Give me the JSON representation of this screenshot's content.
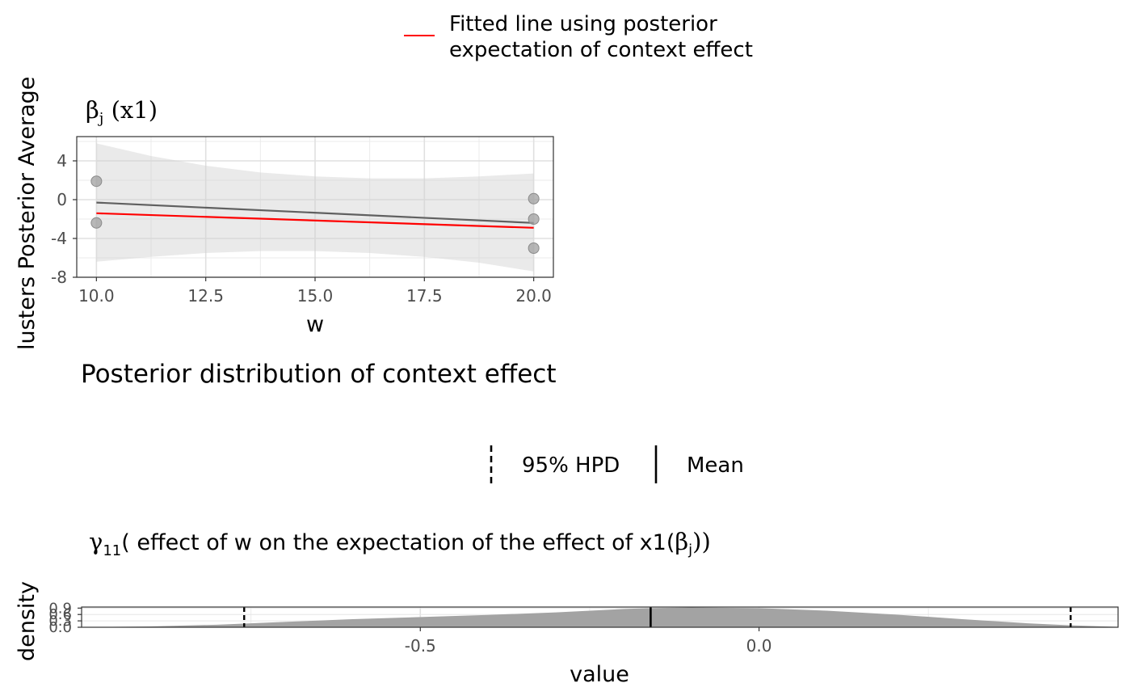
{
  "top_legend": {
    "line_color": "#ff0000",
    "label_line1": "Fitted line using posterior",
    "label_line2": "expectation of context effect"
  },
  "ylabel_outer": "lusters Posterior Average",
  "panel1": {
    "title_symbol": "β",
    "title_subscript": "j",
    "title_rest": " (x1)",
    "xlabel": "w",
    "xticks": [
      "10.0",
      "12.5",
      "15.0",
      "17.5",
      "20.0"
    ],
    "yticks": [
      "4",
      "0",
      "-4",
      "-8"
    ]
  },
  "section_title": "Posterior distribution of context effect",
  "mid_legend": {
    "hpd_label": "95% HPD",
    "mean_label": "Mean"
  },
  "panel2": {
    "title_symbol": "γ",
    "title_subscript": "11",
    "title_text": "( effect of w on the expectation of the effect of x1(",
    "title_beta": "β",
    "title_beta_sub": "j",
    "title_close": "))",
    "ylabel": "density",
    "xlabel": "value",
    "xticks": [
      "-0.5",
      "0.0"
    ],
    "yticks": [
      "0.9",
      "0.6",
      "0.3",
      "0.0"
    ]
  },
  "chart_data": [
    {
      "type": "scatter",
      "title": "βj (x1)",
      "xlabel": "w",
      "ylabel": "lusters Posterior Average",
      "xlim": [
        9.55,
        20.45
      ],
      "ylim": [
        -8,
        6.5
      ],
      "points": [
        {
          "x": 10,
          "y": 1.9
        },
        {
          "x": 10,
          "y": -2.4
        },
        {
          "x": 20,
          "y": 0.1
        },
        {
          "x": 20,
          "y": -2.0
        },
        {
          "x": 20,
          "y": -5.0
        }
      ],
      "lm_line": {
        "x": [
          10,
          20
        ],
        "y": [
          -0.3,
          -2.4
        ],
        "color": "#606060"
      },
      "ci_band": {
        "x": [
          10,
          11.25,
          12.5,
          13.75,
          15,
          16.25,
          17.5,
          18.75,
          20
        ],
        "lower": [
          -6.4,
          -5.9,
          -5.5,
          -5.3,
          -5.3,
          -5.5,
          -5.9,
          -6.5,
          -7.4
        ],
        "upper": [
          5.8,
          4.5,
          3.5,
          2.8,
          2.4,
          2.2,
          2.2,
          2.4,
          2.7
        ]
      },
      "fitted_line": {
        "x": [
          10,
          20
        ],
        "y": [
          -1.4,
          -2.9
        ],
        "color": "#ff0000"
      },
      "grid": true
    },
    {
      "type": "area",
      "title": "γ11( effect of w on the expectation of the effect of x1(βj))",
      "xlabel": "value",
      "ylabel": "density",
      "xlim": [
        -1.0,
        0.53
      ],
      "ylim": [
        0,
        0.95
      ],
      "density": {
        "x": [
          -1.0,
          -0.9,
          -0.8,
          -0.7,
          -0.6,
          -0.5,
          -0.4,
          -0.3,
          -0.2,
          -0.16,
          -0.1,
          0.0,
          0.1,
          0.2,
          0.3,
          0.4,
          0.46,
          0.53
        ],
        "y": [
          0.0,
          0.04,
          0.12,
          0.25,
          0.38,
          0.48,
          0.58,
          0.7,
          0.86,
          0.9,
          0.93,
          0.9,
          0.78,
          0.6,
          0.38,
          0.18,
          0.09,
          0.02
        ]
      },
      "fill": "#a3a3a3",
      "mean": -0.16,
      "hpd": [
        -0.76,
        0.46
      ],
      "grid": true
    }
  ]
}
